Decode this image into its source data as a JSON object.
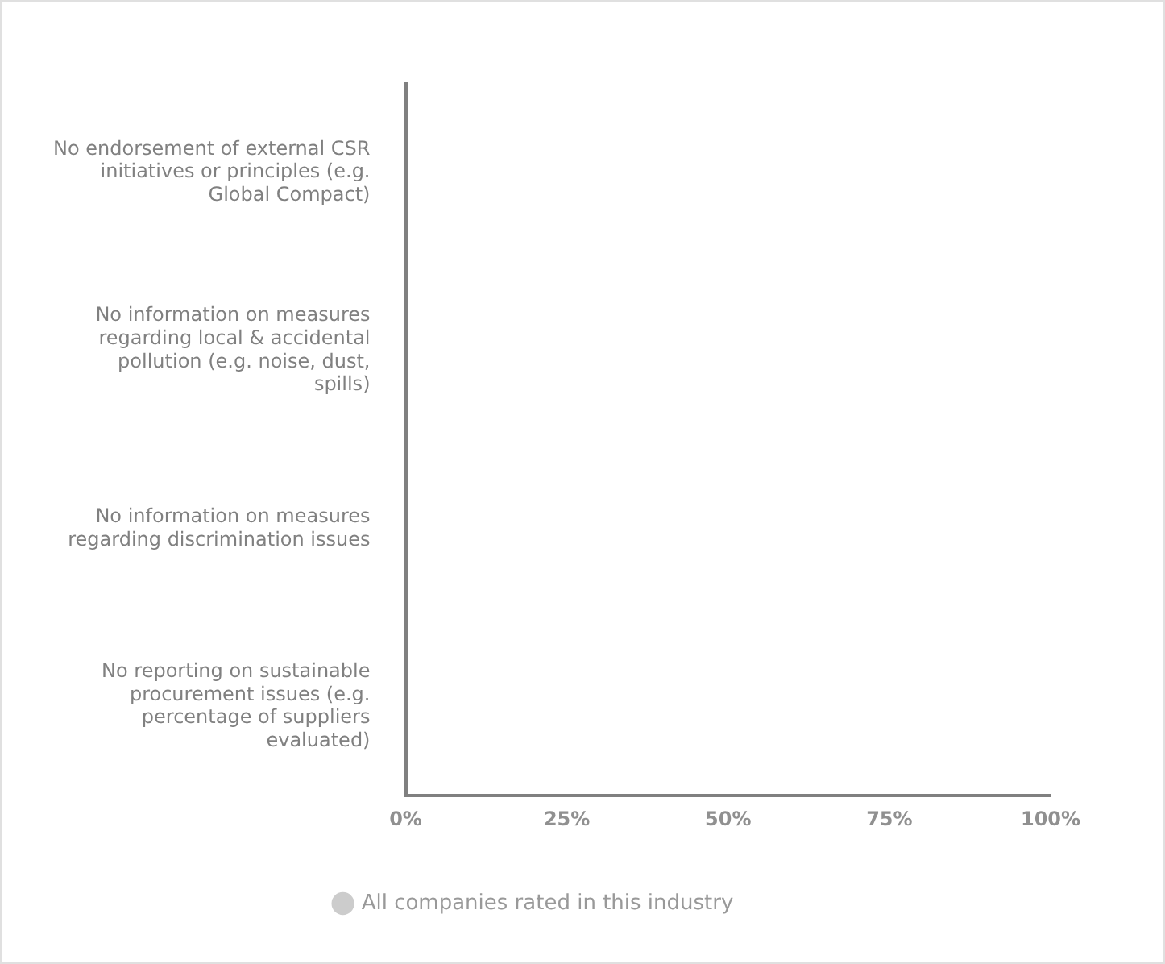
{
  "chart_data": {
    "type": "bar",
    "orientation": "horizontal",
    "categories": [
      "No endorsement of external CSR initiatives or principles (e.g. Global Compact)",
      "No information on measures regarding local & accidental pollution (e.g. noise, dust, spills)",
      "No information on measures regarding discrimination issues",
      "No reporting on sustainable procurement issues (e.g. percentage of suppliers evaluated)"
    ],
    "series": [
      {
        "name": "All companies rated in this industry",
        "color": "#cccccc",
        "values": [
          0,
          0,
          0,
          0
        ]
      }
    ],
    "xlim": [
      0,
      100
    ],
    "xticks": [
      {
        "value": 0,
        "label": "0%"
      },
      {
        "value": 25,
        "label": "25%"
      },
      {
        "value": 50,
        "label": "50%"
      },
      {
        "value": 75,
        "label": "75%"
      },
      {
        "value": 100,
        "label": "100%"
      }
    ],
    "grid": false,
    "legend": "bottom"
  }
}
